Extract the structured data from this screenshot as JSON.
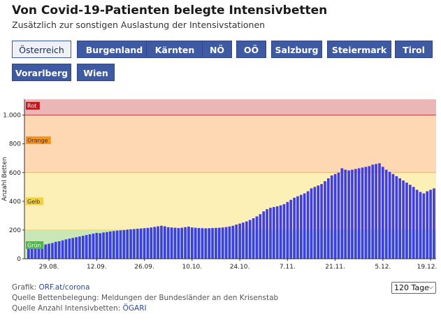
{
  "header": {
    "title": "Von Covid-19-Patienten belegte Intensivbetten",
    "subtitle": "Zusätzlich zur sonstigen Auslastung der Intensivstationen"
  },
  "tabs": [
    {
      "label": "Österreich",
      "active": true
    },
    {
      "label": "Burgenland",
      "active": false
    },
    {
      "label": "Kärnten",
      "active": false
    },
    {
      "label": "NÖ",
      "active": false
    },
    {
      "label": "OÖ",
      "active": false
    },
    {
      "label": "Salzburg",
      "active": false
    },
    {
      "label": "Steiermark",
      "active": false
    },
    {
      "label": "Tirol",
      "active": false
    },
    {
      "label": "Vorarlberg",
      "active": false
    },
    {
      "label": "Wien",
      "active": false
    }
  ],
  "footer": {
    "grafik_label": "Grafik: ",
    "grafik_link": "ORF.at/corona",
    "quelle_betten": "Quelle Bettenbelegung: Meldungen der Bundesländer an den Krisenstab",
    "quelle_anzahl_label": "Quelle Anzahl Intensivbetten: ",
    "quelle_anzahl_link": "ÖGARI",
    "range_selected": "120 Tage"
  },
  "colors": {
    "bar": "#3c3df0",
    "tab": "#3e5aa3",
    "zone_rot": "#eab6b6",
    "zone_orange": "#fdd8b2",
    "zone_gelb": "#fdf0b6",
    "zone_gruen": "#c9e8b5"
  },
  "chart_data": {
    "type": "bar",
    "ylabel": "Anzahl Betten",
    "ylim": [
      0,
      1110
    ],
    "yticks": [
      0,
      200,
      400,
      600,
      800,
      1000
    ],
    "ytick_labels": [
      "0",
      "200",
      "400",
      "600",
      "800",
      "1.000"
    ],
    "x_tick_labels": [
      "29.08.",
      "12.09.",
      "26.09.",
      "10.10.",
      "24.10.",
      "7.11.",
      "21.11.",
      "5.12.",
      "19.12."
    ],
    "x_tick_indices": [
      6,
      20,
      34,
      48,
      62,
      76,
      90,
      104,
      118
    ],
    "zones": [
      {
        "label": "Grün",
        "from": 0,
        "to": 200,
        "color": "#c9e8b5",
        "label_bg": "#4cb848",
        "label_fg": "#ffffff"
      },
      {
        "label": "Gelb",
        "from": 200,
        "to": 600,
        "color": "#fdf0b6",
        "label_bg": "#f3d23e",
        "label_fg": "#333333"
      },
      {
        "label": "Orange",
        "from": 600,
        "to": 1000,
        "color": "#fdd8b2",
        "label_bg": "#f7941d",
        "label_fg": "#333333"
      },
      {
        "label": "Rot",
        "from": 1000,
        "to": 1110,
        "color": "#eab6b6",
        "label_bg": "#c4171d",
        "label_fg": "#ffffff"
      }
    ],
    "values": [
      75,
      80,
      85,
      90,
      95,
      100,
      105,
      110,
      118,
      122,
      128,
      135,
      140,
      145,
      150,
      155,
      160,
      165,
      170,
      175,
      180,
      178,
      183,
      186,
      190,
      193,
      196,
      198,
      200,
      203,
      205,
      207,
      209,
      211,
      213,
      215,
      218,
      222,
      226,
      230,
      226,
      220,
      218,
      216,
      214,
      216,
      220,
      224,
      218,
      216,
      214,
      213,
      212,
      213,
      214,
      215,
      216,
      218,
      221,
      225,
      230,
      238,
      245,
      252,
      260,
      270,
      282,
      295,
      310,
      330,
      345,
      355,
      360,
      365,
      372,
      380,
      395,
      410,
      425,
      435,
      445,
      455,
      470,
      490,
      500,
      510,
      520,
      540,
      560,
      580,
      590,
      600,
      630,
      620,
      615,
      620,
      625,
      630,
      635,
      640,
      645,
      655,
      660,
      665,
      640,
      620,
      605,
      590,
      575,
      560,
      545,
      530,
      515,
      500,
      480,
      465,
      455,
      470,
      480,
      490
    ]
  }
}
